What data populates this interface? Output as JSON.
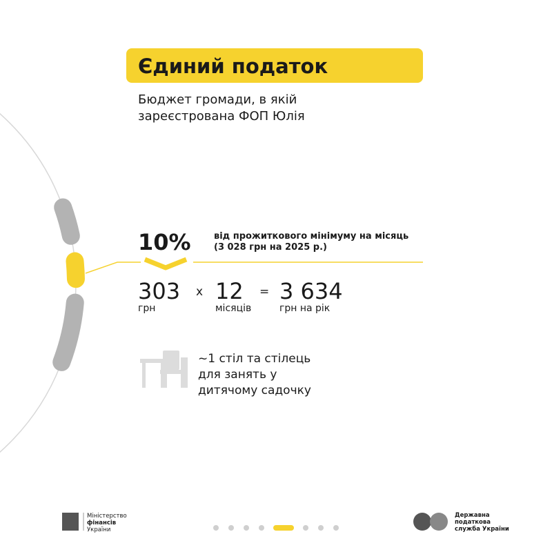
{
  "header": {
    "title": "Єдиний податок",
    "subtitle": [
      "Бюджет громади, в якій",
      "зареєстрована ФОП Юлія"
    ]
  },
  "rate": {
    "percent": "10%",
    "description": [
      "від прожиткового мінімуму на місяць",
      "(3 028 грн на 2025 р.)"
    ]
  },
  "calculation": {
    "monthly": {
      "value": "303",
      "unit": "грн"
    },
    "multiply": "x",
    "months": {
      "value": "12",
      "unit": "місяців"
    },
    "equals": "=",
    "total": {
      "value": "3 634",
      "unit": "грн на рік"
    }
  },
  "equivalent": [
    "~1 стіл та стілець",
    "для занять у",
    "дитячому садочку"
  ],
  "footer": {
    "left": [
      "Міністерство",
      "фінансів",
      "України"
    ],
    "right": [
      "Державна",
      "податкова",
      "служба України"
    ]
  }
}
